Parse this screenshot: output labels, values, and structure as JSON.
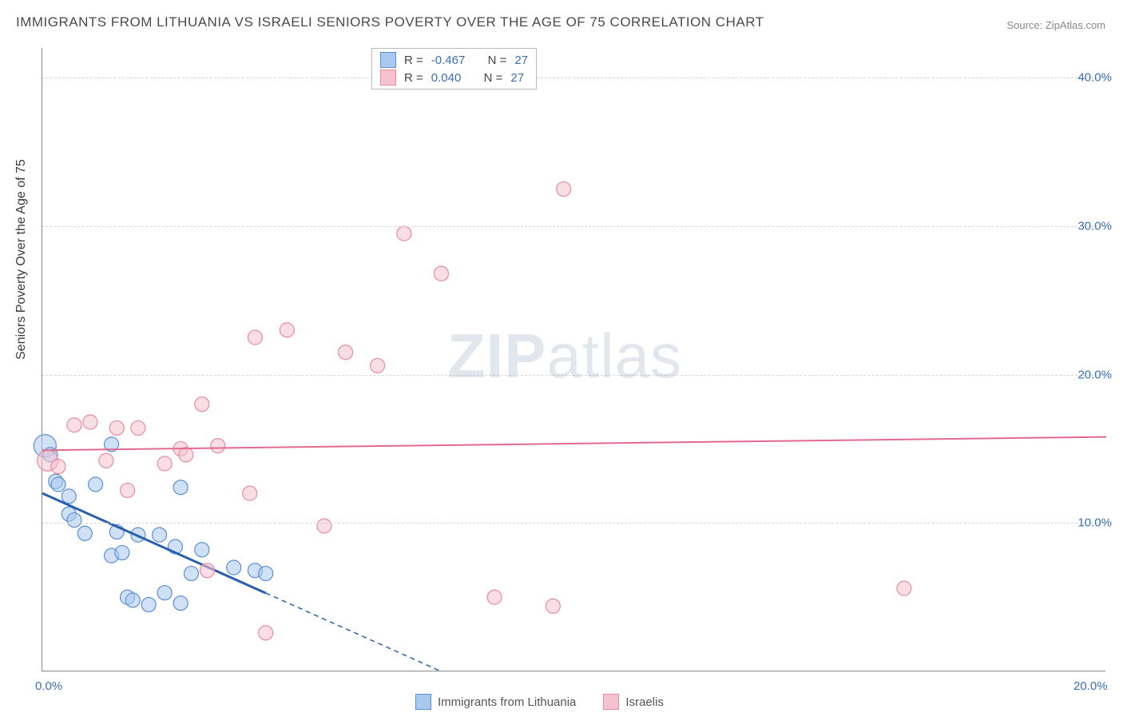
{
  "title": "IMMIGRANTS FROM LITHUANIA VS ISRAELI SENIORS POVERTY OVER THE AGE OF 75 CORRELATION CHART",
  "source": "Source: ZipAtlas.com",
  "y_axis_title": "Seniors Poverty Over the Age of 75",
  "watermark": {
    "bold": "ZIP",
    "rest": "atlas"
  },
  "chart": {
    "type": "scatter",
    "xlim": [
      0,
      20
    ],
    "ylim": [
      0,
      42
    ],
    "x_ticks": [
      {
        "value": 0,
        "label": "0.0%"
      },
      {
        "value": 20,
        "label": "20.0%"
      }
    ],
    "y_ticks": [
      {
        "value": 10,
        "label": "10.0%"
      },
      {
        "value": 20,
        "label": "20.0%"
      },
      {
        "value": 30,
        "label": "30.0%"
      },
      {
        "value": 40,
        "label": "40.0%"
      }
    ],
    "grid_color": "#d8d8d8",
    "background_color": "#ffffff",
    "axis_color": "#888888",
    "tick_label_color": "#3b6fb6",
    "tick_fontsize": 15,
    "marker_radius": 9,
    "marker_opacity": 0.55,
    "series": [
      {
        "name": "Immigrants from Lithuania",
        "fill": "#a9c8ee",
        "stroke": "#5a8fd6",
        "line_color": "#2a5fb0",
        "r": -0.467,
        "n": 27,
        "regression": {
          "x1": 0,
          "y1": 12.0,
          "x2": 7.5,
          "y2": 0.0,
          "dash_after_x": 4.2
        },
        "points": [
          {
            "x": 0.05,
            "y": 15.2,
            "r": 14
          },
          {
            "x": 0.15,
            "y": 14.6
          },
          {
            "x": 0.25,
            "y": 12.8
          },
          {
            "x": 0.3,
            "y": 12.6
          },
          {
            "x": 0.5,
            "y": 11.8
          },
          {
            "x": 0.5,
            "y": 10.6
          },
          {
            "x": 0.6,
            "y": 10.2
          },
          {
            "x": 0.8,
            "y": 9.3
          },
          {
            "x": 1.0,
            "y": 12.6
          },
          {
            "x": 1.3,
            "y": 15.3
          },
          {
            "x": 1.3,
            "y": 7.8
          },
          {
            "x": 1.4,
            "y": 9.4
          },
          {
            "x": 1.5,
            "y": 8.0
          },
          {
            "x": 1.6,
            "y": 5.0
          },
          {
            "x": 1.7,
            "y": 4.8
          },
          {
            "x": 1.8,
            "y": 9.2
          },
          {
            "x": 2.0,
            "y": 4.5
          },
          {
            "x": 2.2,
            "y": 9.2
          },
          {
            "x": 2.3,
            "y": 5.3
          },
          {
            "x": 2.5,
            "y": 8.4
          },
          {
            "x": 2.6,
            "y": 12.4
          },
          {
            "x": 2.6,
            "y": 4.6
          },
          {
            "x": 2.8,
            "y": 6.6
          },
          {
            "x": 3.0,
            "y": 8.2
          },
          {
            "x": 3.6,
            "y": 7.0
          },
          {
            "x": 4.0,
            "y": 6.8
          },
          {
            "x": 4.2,
            "y": 6.6
          }
        ]
      },
      {
        "name": "Israelis",
        "fill": "#f5c2cf",
        "stroke": "#e88aa2",
        "line_color": "#e26b8d",
        "r": 0.04,
        "n": 27,
        "regression": {
          "x1": 0,
          "y1": 14.9,
          "x2": 20,
          "y2": 15.8
        },
        "points": [
          {
            "x": 0.1,
            "y": 14.2,
            "r": 13
          },
          {
            "x": 0.3,
            "y": 13.8
          },
          {
            "x": 0.6,
            "y": 16.6
          },
          {
            "x": 0.9,
            "y": 16.8
          },
          {
            "x": 1.2,
            "y": 14.2
          },
          {
            "x": 1.4,
            "y": 16.4
          },
          {
            "x": 1.6,
            "y": 12.2
          },
          {
            "x": 1.8,
            "y": 16.4
          },
          {
            "x": 2.3,
            "y": 14.0
          },
          {
            "x": 2.6,
            "y": 15.0
          },
          {
            "x": 2.7,
            "y": 14.6
          },
          {
            "x": 3.0,
            "y": 18.0
          },
          {
            "x": 3.1,
            "y": 6.8
          },
          {
            "x": 3.3,
            "y": 15.2
          },
          {
            "x": 3.9,
            "y": 12.0
          },
          {
            "x": 4.0,
            "y": 22.5
          },
          {
            "x": 4.2,
            "y": 2.6
          },
          {
            "x": 4.6,
            "y": 23.0
          },
          {
            "x": 5.3,
            "y": 9.8
          },
          {
            "x": 5.7,
            "y": 21.5
          },
          {
            "x": 6.3,
            "y": 20.6
          },
          {
            "x": 6.8,
            "y": 29.5
          },
          {
            "x": 7.5,
            "y": 26.8
          },
          {
            "x": 8.5,
            "y": 5.0
          },
          {
            "x": 9.6,
            "y": 4.4
          },
          {
            "x": 9.8,
            "y": 32.5
          },
          {
            "x": 16.2,
            "y": 5.6
          }
        ]
      }
    ]
  },
  "legend_top": [
    {
      "swatchFill": "#a9c8ee",
      "swatchStroke": "#5a8fd6",
      "r_label": "R = ",
      "r_value": "-0.467",
      "n_label": "N = ",
      "n_value": "27"
    },
    {
      "swatchFill": "#f5c2cf",
      "swatchStroke": "#e88aa2",
      "r_label": "R = ",
      "r_value": "0.040",
      "n_label": "N = ",
      "n_value": "27"
    }
  ],
  "legend_bottom": [
    {
      "swatchFill": "#a9c8ee",
      "swatchStroke": "#5a8fd6",
      "label": "Immigrants from Lithuania"
    },
    {
      "swatchFill": "#f5c2cf",
      "swatchStroke": "#e88aa2",
      "label": "Israelis"
    }
  ]
}
